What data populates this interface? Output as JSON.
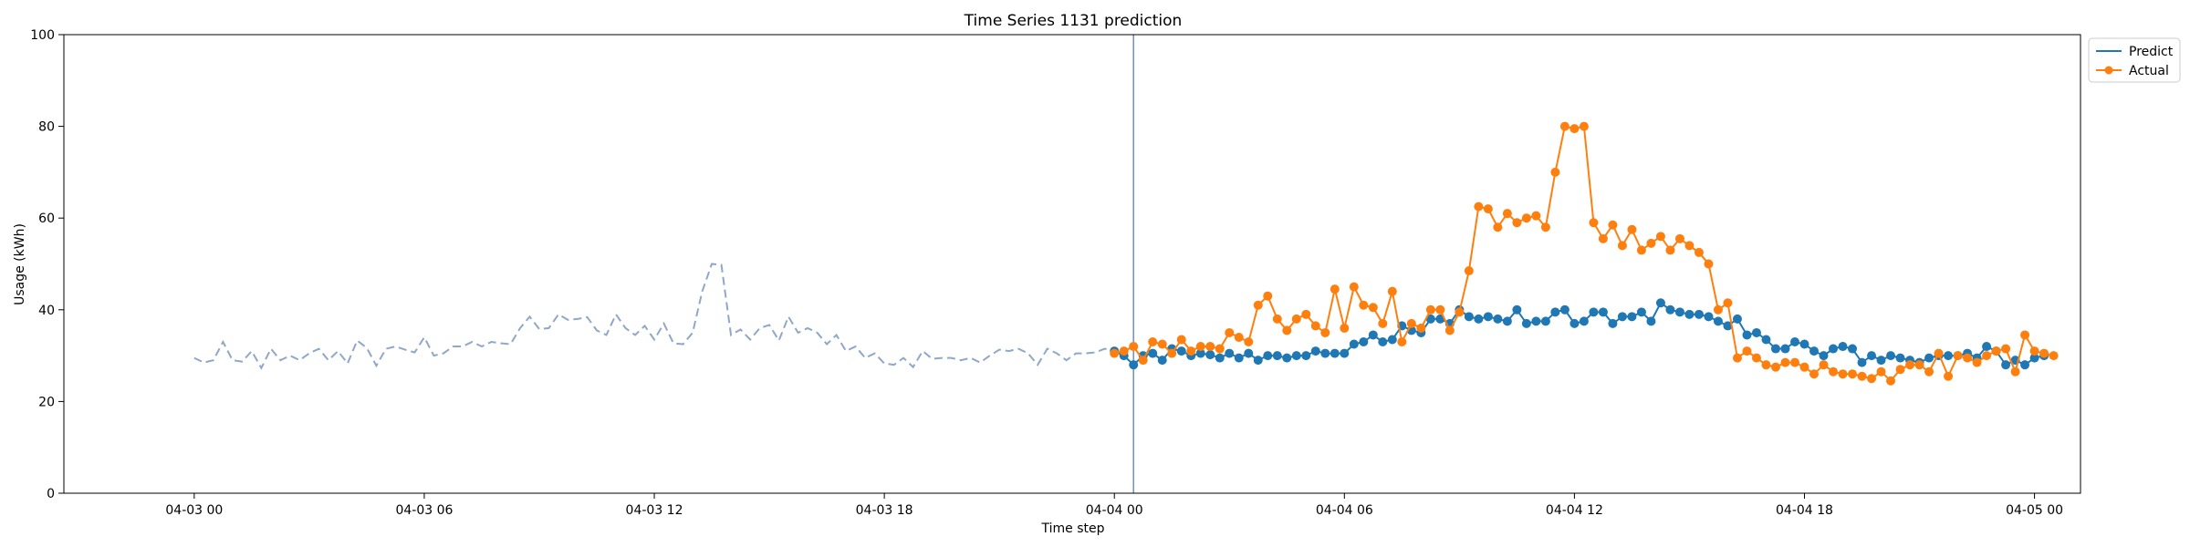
{
  "chart_data": {
    "type": "line",
    "title": "Time Series 1131 prediction",
    "xlabel": "Time step",
    "ylabel": "Usage (kWh)",
    "ylim": [
      0,
      100
    ],
    "yticks": [
      0,
      20,
      40,
      60,
      80,
      100
    ],
    "xlim_hours": [
      -3.4,
      49.2
    ],
    "xticks": [
      {
        "label": "04-03 00",
        "hour": 0
      },
      {
        "label": "04-03 06",
        "hour": 6
      },
      {
        "label": "04-03 12",
        "hour": 12
      },
      {
        "label": "04-03 18",
        "hour": 18
      },
      {
        "label": "04-04 00",
        "hour": 24
      },
      {
        "label": "04-04 06",
        "hour": 30
      },
      {
        "label": "04-04 12",
        "hour": 36
      },
      {
        "label": "04-04 18",
        "hour": 42
      },
      {
        "label": "04-05 00",
        "hour": 48
      }
    ],
    "forecast_start_hour": 24.5,
    "step_hours": 0.25,
    "history": {
      "start_hour": 0,
      "color": "#8fa8c8",
      "values": [
        29.5,
        28.5,
        29,
        33,
        29,
        28.7,
        31,
        27.3,
        31.5,
        29,
        30,
        29,
        30.5,
        31.5,
        29,
        31,
        28.3,
        33.3,
        31.7,
        27.8,
        31.5,
        32,
        31.3,
        30.7,
        34,
        30,
        30.5,
        32,
        32,
        33,
        32,
        33,
        32.7,
        32.5,
        36,
        38.5,
        35.8,
        36,
        39,
        37.8,
        38,
        38.4,
        35.5,
        34.5,
        39,
        36,
        34.5,
        36.5,
        33.5,
        37,
        32.7,
        32.5,
        35,
        44,
        50,
        49.8,
        34.5,
        35.7,
        33.5,
        36,
        36.7,
        33.3,
        38.5,
        35,
        36,
        35,
        32.5,
        34.5,
        31,
        32,
        29.5,
        30.5,
        28.3,
        28,
        29.5,
        27.5,
        31,
        29.3,
        29.5,
        29.5,
        29,
        29.5,
        28.5,
        30,
        31.3,
        31,
        31.5,
        30.5,
        28,
        31.5,
        30.5,
        29,
        30.5,
        30.5,
        30.7,
        31.5,
        31
      ]
    },
    "series": [
      {
        "name": "Predict",
        "color": "#1f77b4",
        "start_hour": 24,
        "values": [
          31,
          30,
          28,
          30,
          30.5,
          29,
          31.5,
          31,
          30,
          30.5,
          30.2,
          29.5,
          30.5,
          29.5,
          30.5,
          29,
          30,
          30,
          29.5,
          30,
          30,
          31,
          30.5,
          30.5,
          30.5,
          32.5,
          33,
          34.5,
          33,
          33.5,
          36.5,
          35.5,
          35,
          38,
          38,
          37,
          40,
          38.5,
          38,
          38.5,
          38,
          37.5,
          40,
          37,
          37.5,
          37.5,
          39.5,
          40,
          37,
          37.5,
          39.5,
          39.5,
          37,
          38.5,
          38.5,
          39.5,
          37.5,
          41.5,
          40,
          39.5,
          39,
          39,
          38.5,
          37.5,
          36.5,
          38,
          34.5,
          35,
          33.5,
          31.5,
          31.5,
          33,
          32.5,
          31,
          30,
          31.5,
          32,
          31.5,
          28.5,
          30,
          29,
          30,
          29.5,
          29,
          28.5,
          29.5,
          30,
          30,
          30,
          30.5,
          29.5,
          32,
          31,
          28,
          29,
          28,
          29.5,
          30
        ]
      },
      {
        "name": "Actual",
        "color": "#ff7f0e",
        "start_hour": 24,
        "values": [
          30.5,
          31,
          32,
          29,
          33,
          32.5,
          30.5,
          33.5,
          31,
          32,
          32,
          31.5,
          35,
          34,
          33,
          41,
          43,
          38,
          35.5,
          38,
          39,
          36.5,
          35,
          44.5,
          36,
          45,
          41,
          40.5,
          37,
          44,
          33,
          37,
          36,
          40,
          40,
          35.5,
          39.5,
          48.5,
          62.5,
          62,
          58,
          61,
          59,
          60,
          60.5,
          58,
          70,
          80,
          79.5,
          80,
          59,
          55.5,
          58.5,
          54,
          57.5,
          53,
          54.5,
          56,
          53,
          55.5,
          54,
          52.5,
          50,
          40,
          41.5,
          29.5,
          31,
          29.5,
          28,
          27.5,
          28.5,
          28.5,
          27.5,
          26,
          28,
          26.5,
          26,
          26,
          25.5,
          25,
          26.5,
          24.5,
          27,
          28,
          28,
          26.5,
          30.5,
          25.5,
          30,
          29.5,
          28.5,
          30,
          31,
          31.5,
          26.5,
          34.5,
          31,
          30.5,
          30
        ]
      }
    ],
    "legend": {
      "placement": "top-right outside",
      "entries": [
        "Predict",
        "Actual"
      ]
    }
  }
}
